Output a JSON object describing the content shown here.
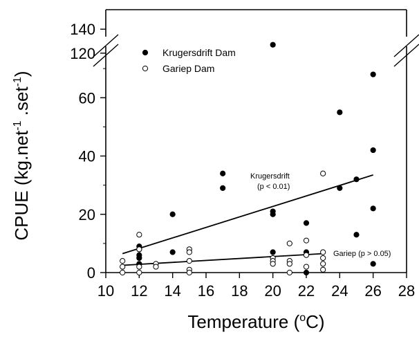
{
  "chart_data": {
    "type": "scatter",
    "xlabel": "Temperature (",
    "xlabel_sup": "o",
    "xlabel_suffix": "C)",
    "ylabel": "CPUE (kg.net",
    "ylabel_sup": "-1",
    "ylabel_mid": " .set",
    "ylabel_sup2": "-1",
    "ylabel_suffix": ")",
    "xlim": [
      10,
      28
    ],
    "ylim_lower": [
      0,
      80
    ],
    "ylim_upper": [
      115,
      145
    ],
    "x_ticks": [
      "10",
      "12",
      "14",
      "16",
      "18",
      "20",
      "22",
      "24",
      "26",
      "28"
    ],
    "y_ticks_lower": [
      "0",
      "20",
      "40",
      "60"
    ],
    "y_ticks_upper": [
      "120",
      "140"
    ],
    "axis_break": true,
    "legend_position": "top-left",
    "series": [
      {
        "name": "Krugersdrift Dam",
        "marker": "filled-circle",
        "points": [
          [
            12,
            9
          ],
          [
            12,
            8
          ],
          [
            12,
            6
          ],
          [
            12,
            5
          ],
          [
            12,
            3
          ],
          [
            14,
            20
          ],
          [
            14,
            7
          ],
          [
            17,
            34
          ],
          [
            17,
            29
          ],
          [
            20,
            127
          ],
          [
            20,
            21
          ],
          [
            20,
            20
          ],
          [
            20,
            7
          ],
          [
            22,
            17
          ],
          [
            22,
            7
          ],
          [
            22,
            0
          ],
          [
            24,
            55
          ],
          [
            24,
            29
          ],
          [
            25,
            32
          ],
          [
            25,
            13
          ],
          [
            26,
            68
          ],
          [
            26,
            42
          ],
          [
            26,
            22
          ],
          [
            26,
            3
          ]
        ]
      },
      {
        "name": "Gariep Dam",
        "marker": "open-circle",
        "points": [
          [
            11,
            4
          ],
          [
            11,
            2
          ],
          [
            11,
            0
          ],
          [
            12,
            13
          ],
          [
            12,
            8
          ],
          [
            12,
            2
          ],
          [
            12,
            0
          ],
          [
            13,
            3
          ],
          [
            13,
            2
          ],
          [
            15,
            8
          ],
          [
            15,
            7
          ],
          [
            15,
            4
          ],
          [
            15,
            1
          ],
          [
            15,
            0
          ],
          [
            20,
            5
          ],
          [
            20,
            4
          ],
          [
            20,
            3
          ],
          [
            21,
            10
          ],
          [
            21,
            4
          ],
          [
            21,
            3
          ],
          [
            21,
            0
          ],
          [
            22,
            11
          ],
          [
            22,
            6
          ],
          [
            22,
            2
          ],
          [
            23,
            34
          ],
          [
            23,
            7
          ],
          [
            23,
            5
          ],
          [
            23,
            3
          ],
          [
            23,
            1
          ]
        ]
      }
    ],
    "trend_lines": [
      {
        "name": "Krugersdrift",
        "x": [
          11,
          26
        ],
        "y": [
          6.5,
          33.5
        ],
        "label": "Krugersdrift",
        "label2": "(p < 0.01)"
      },
      {
        "name": "Gariep",
        "x": [
          11,
          23
        ],
        "y": [
          2.5,
          6.5
        ],
        "label": "Gariep (p > 0.05)"
      }
    ]
  }
}
